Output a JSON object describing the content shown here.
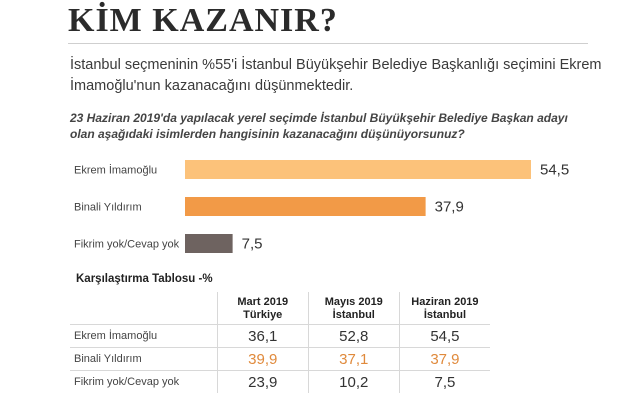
{
  "headline": "KİM KAZANIR?",
  "lead": "İstanbul seçmeninin %55'i İstanbul Büyükşehir Belediye Başkanlığı seçimini Ekrem İmamoğlu'nun kazanacağını düşünmektedir.",
  "question": "23 Haziran 2019'da yapılacak yerel seçimde İstanbul Büyükşehir Belediye Başkan adayı olan aşağıdaki isimlerden hangisinin kazanacağını düşünüyorsunuz?",
  "colors": {
    "bar_1": "#fcc27a",
    "bar_2": "#f29a47",
    "bar_3": "#6e6360",
    "accent_text": "#e08a3c"
  },
  "chart_data": {
    "type": "bar",
    "orientation": "horizontal",
    "categories": [
      "Ekrem İmamoğlu",
      "Binali Yıldırım",
      "Fikrim yok/Cevap yok"
    ],
    "values": [
      54.5,
      37.9,
      7.5
    ],
    "value_labels": [
      "54,5",
      "37,9",
      "7,5"
    ],
    "xlim": [
      0,
      54.5
    ]
  },
  "table": {
    "title": "Karşılaştırma Tablosu -%",
    "columns": [
      {
        "line1": "Mart 2019",
        "line2": "Türkiye"
      },
      {
        "line1": "Mayıs 2019",
        "line2": "İstanbul"
      },
      {
        "line1": "Haziran 2019",
        "line2": "İstanbul"
      }
    ],
    "rows": [
      {
        "label": "Ekrem İmamoğlu",
        "values": [
          "36,1",
          "52,8",
          "54,5"
        ]
      },
      {
        "label": "Binali Yıldırım",
        "values": [
          "39,9",
          "37,1",
          "37,9"
        ]
      },
      {
        "label": "Fikrim yok/Cevap yok",
        "values": [
          "23,9",
          "10,2",
          "7,5"
        ]
      }
    ]
  }
}
